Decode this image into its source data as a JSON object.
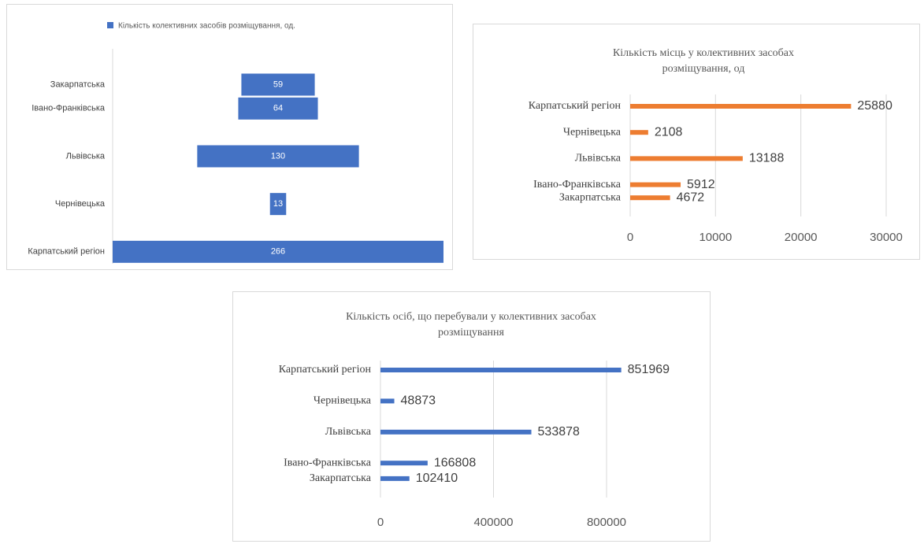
{
  "chart_data": [
    {
      "type": "funnel",
      "categories": [
        null,
        "Закарпатська",
        "Івано-Франківська",
        null,
        "Львівська",
        null,
        "Чернівецька",
        null,
        "Карпатський регіон"
      ],
      "series": [
        {
          "name": "Кількість колективних засобів розміщування, од.",
          "color": "#4472c4",
          "values": [
            null,
            59,
            64,
            null,
            130,
            null,
            13,
            null,
            266
          ]
        }
      ]
    },
    {
      "type": "hbar",
      "title": [
        "Кількість місць у колективних засобах",
        "розміщування, од"
      ],
      "categories": [
        "Карпатський регіон",
        null,
        "Чернівецька",
        null,
        "Львівська",
        null,
        "Івано-Франківська",
        "Закарпатська"
      ],
      "values": [
        25880,
        null,
        2108,
        null,
        13188,
        null,
        5912,
        4672
      ],
      "color": "#ed7d31",
      "xlim": [
        0,
        30000
      ],
      "xticks": [
        0,
        10000,
        20000,
        30000
      ],
      "grid": true
    },
    {
      "type": "hbar",
      "title": [
        "Кількість осіб, що перебували у колективних засобах",
        "розміщування"
      ],
      "categories": [
        "Карпатський регіон",
        null,
        "Чернівецька",
        null,
        "Львівська",
        null,
        "Івано-Франківська",
        "Закарпатська"
      ],
      "values": [
        851969,
        null,
        48873,
        null,
        533878,
        null,
        166808,
        102410
      ],
      "color": "#4472c4",
      "xlim": [
        0,
        800000
      ],
      "xticks": [
        0,
        400000,
        800000
      ],
      "grid": true
    }
  ]
}
